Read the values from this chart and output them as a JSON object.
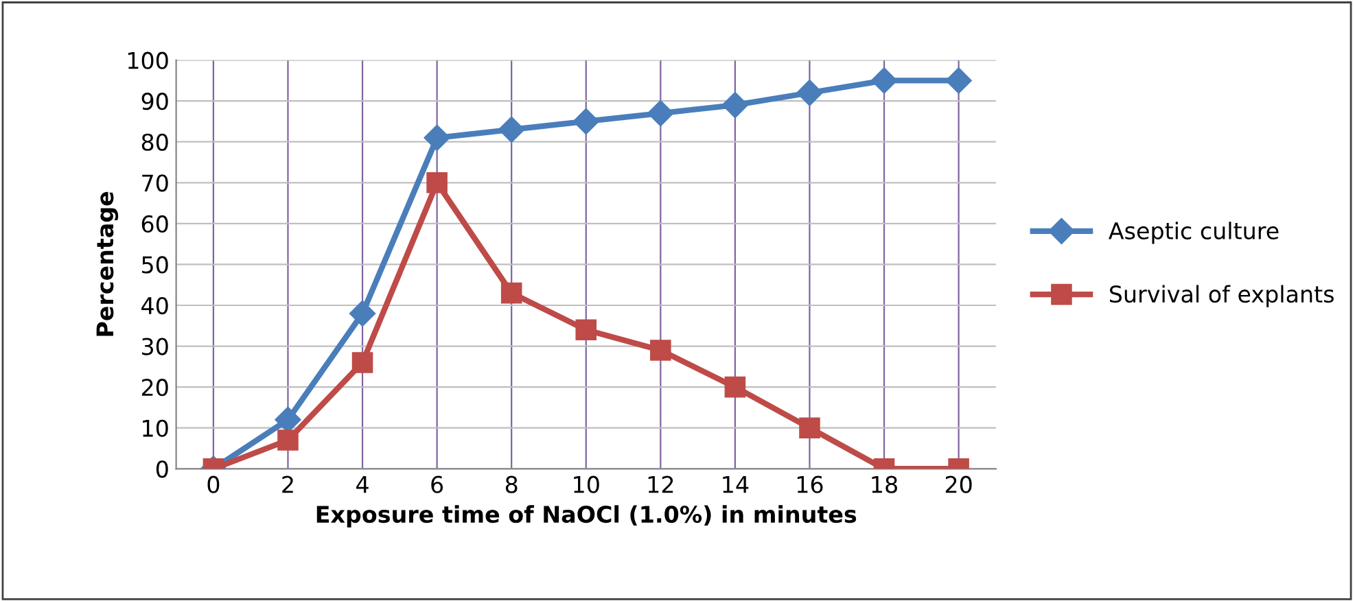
{
  "chart_data": {
    "type": "line",
    "xlabel": "Exposure time of NaOCl (1.0%) in minutes",
    "ylabel": "Percentage",
    "categories": [
      "0",
      "2",
      "4",
      "6",
      "8",
      "10",
      "12",
      "14",
      "16",
      "18",
      "20"
    ],
    "series": [
      {
        "name": "Aseptic culture",
        "color": "#4a7ebb",
        "marker": "diamond",
        "values": [
          0,
          12,
          38,
          81,
          83,
          85,
          87,
          89,
          92,
          95,
          95
        ]
      },
      {
        "name": "Survival of explants",
        "color": "#be4b48",
        "marker": "square",
        "values": [
          0,
          7,
          26,
          70,
          43,
          34,
          29,
          20,
          10,
          0,
          0
        ]
      }
    ],
    "ylim": [
      0,
      100
    ],
    "yticks": [
      0,
      10,
      20,
      30,
      40,
      50,
      60,
      70,
      80,
      90,
      100
    ],
    "grid": true,
    "legend": "right",
    "line_style": "solid"
  }
}
